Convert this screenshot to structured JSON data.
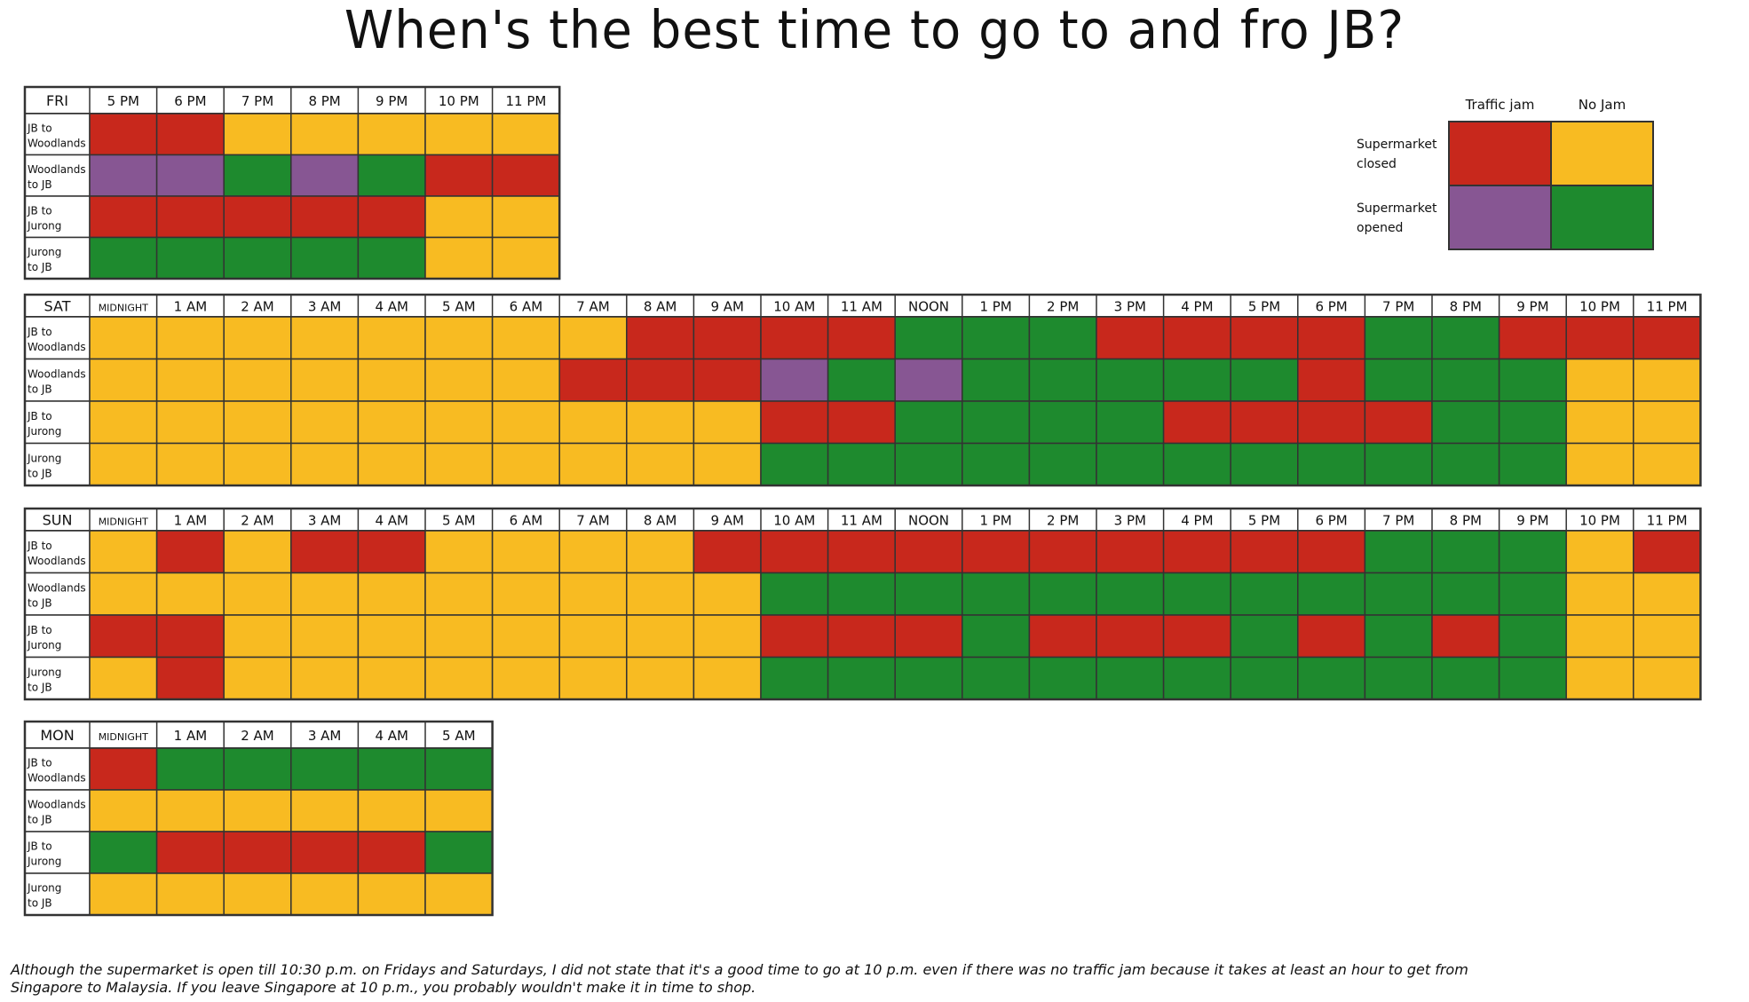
{
  "title": "When's the best time to go to and fro JB?",
  "note": "Although the supermarket is open till 10:30 p.m. on Fridays and Saturdays, I did not state that it's a good time to go at 10 p.m. even if there was no traffic jam because it takes at least an hour to get from Singapore to Malaysia. If you leave Singapore at 10 p.m., you probably wouldn't make it in time to shop.",
  "colors": {
    "jam_closed": "#c8281c",
    "nojam_closed": "#f8bb22",
    "jam_opened": "#875693",
    "nojam_opened": "#1e8a2e"
  },
  "legend": {
    "col_headers": [
      "Traffic jam",
      "No Jam"
    ],
    "row_headers": [
      "Supermarket closed",
      "Supermarket opened"
    ]
  },
  "chart_data": {
    "type": "table",
    "routes": [
      "JB to Woodlands",
      "Woodlands to JB",
      "JB to Jurong",
      "Jurong to JB"
    ],
    "codes": {
      "R": "Traffic jam / Supermarket closed",
      "Y": "No Jam / Supermarket closed",
      "P": "Traffic jam / Supermarket opened",
      "G": "No Jam / Supermarket opened"
    },
    "days": [
      {
        "day": "FRI",
        "hours": [
          "5 PM",
          "6 PM",
          "7 PM",
          "8 PM",
          "9 PM",
          "10 PM",
          "11 PM"
        ],
        "rows": [
          [
            "R",
            "R",
            "Y",
            "Y",
            "Y",
            "Y",
            "Y"
          ],
          [
            "P",
            "P",
            "G",
            "P",
            "G",
            "R",
            "R"
          ],
          [
            "R",
            "R",
            "R",
            "R",
            "R",
            "Y",
            "Y"
          ],
          [
            "G",
            "G",
            "G",
            "G",
            "G",
            "Y",
            "Y"
          ]
        ]
      },
      {
        "day": "SAT",
        "hours": [
          "MIDNIGHT",
          "1 AM",
          "2 AM",
          "3 AM",
          "4 AM",
          "5 AM",
          "6 AM",
          "7 AM",
          "8 AM",
          "9 AM",
          "10 AM",
          "11 AM",
          "NOON",
          "1 PM",
          "2 PM",
          "3 PM",
          "4 PM",
          "5 PM",
          "6 PM",
          "7 PM",
          "8 PM",
          "9 PM",
          "10 PM",
          "11 PM"
        ],
        "rows": [
          [
            "Y",
            "Y",
            "Y",
            "Y",
            "Y",
            "Y",
            "Y",
            "Y",
            "R",
            "R",
            "R",
            "R",
            "G",
            "G",
            "G",
            "R",
            "R",
            "R",
            "R",
            "G",
            "G",
            "R",
            "R",
            "R"
          ],
          [
            "Y",
            "Y",
            "Y",
            "Y",
            "Y",
            "Y",
            "Y",
            "R",
            "R",
            "R",
            "P",
            "G",
            "P",
            "G",
            "G",
            "G",
            "G",
            "G",
            "R",
            "G",
            "G",
            "G",
            "Y",
            "Y"
          ],
          [
            "Y",
            "Y",
            "Y",
            "Y",
            "Y",
            "Y",
            "Y",
            "Y",
            "Y",
            "Y",
            "R",
            "R",
            "G",
            "G",
            "G",
            "G",
            "R",
            "R",
            "R",
            "R",
            "G",
            "G",
            "Y",
            "Y"
          ],
          [
            "Y",
            "Y",
            "Y",
            "Y",
            "Y",
            "Y",
            "Y",
            "Y",
            "Y",
            "Y",
            "G",
            "G",
            "G",
            "G",
            "G",
            "G",
            "G",
            "G",
            "G",
            "G",
            "G",
            "G",
            "Y",
            "Y"
          ]
        ]
      },
      {
        "day": "SUN",
        "hours": [
          "MIDNIGHT",
          "1 AM",
          "2 AM",
          "3 AM",
          "4 AM",
          "5 AM",
          "6 AM",
          "7 AM",
          "8 AM",
          "9 AM",
          "10 AM",
          "11 AM",
          "NOON",
          "1 PM",
          "2 PM",
          "3 PM",
          "4 PM",
          "5 PM",
          "6 PM",
          "7 PM",
          "8 PM",
          "9 PM",
          "10 PM",
          "11 PM"
        ],
        "rows": [
          [
            "Y",
            "R",
            "Y",
            "R",
            "R",
            "Y",
            "Y",
            "Y",
            "Y",
            "R",
            "R",
            "R",
            "R",
            "R",
            "R",
            "R",
            "R",
            "R",
            "R",
            "G",
            "G",
            "G",
            "Y",
            "R"
          ],
          [
            "Y",
            "Y",
            "Y",
            "Y",
            "Y",
            "Y",
            "Y",
            "Y",
            "Y",
            "Y",
            "G",
            "G",
            "G",
            "G",
            "G",
            "G",
            "G",
            "G",
            "G",
            "G",
            "G",
            "G",
            "Y",
            "Y"
          ],
          [
            "R",
            "R",
            "Y",
            "Y",
            "Y",
            "Y",
            "Y",
            "Y",
            "Y",
            "Y",
            "R",
            "R",
            "R",
            "G",
            "R",
            "R",
            "R",
            "G",
            "R",
            "G",
            "R",
            "G",
            "Y",
            "Y"
          ],
          [
            "Y",
            "R",
            "Y",
            "Y",
            "Y",
            "Y",
            "Y",
            "Y",
            "Y",
            "Y",
            "G",
            "G",
            "G",
            "G",
            "G",
            "G",
            "G",
            "G",
            "G",
            "G",
            "G",
            "G",
            "Y",
            "Y"
          ]
        ]
      },
      {
        "day": "MON",
        "hours": [
          "MIDNIGHT",
          "1 AM",
          "2 AM",
          "3 AM",
          "4 AM",
          "5 AM"
        ],
        "rows": [
          [
            "R",
            "G",
            "G",
            "G",
            "G",
            "G"
          ],
          [
            "Y",
            "Y",
            "Y",
            "Y",
            "Y",
            "Y"
          ],
          [
            "G",
            "R",
            "R",
            "R",
            "R",
            "G"
          ],
          [
            "Y",
            "Y",
            "Y",
            "Y",
            "Y",
            "Y"
          ]
        ]
      }
    ]
  }
}
